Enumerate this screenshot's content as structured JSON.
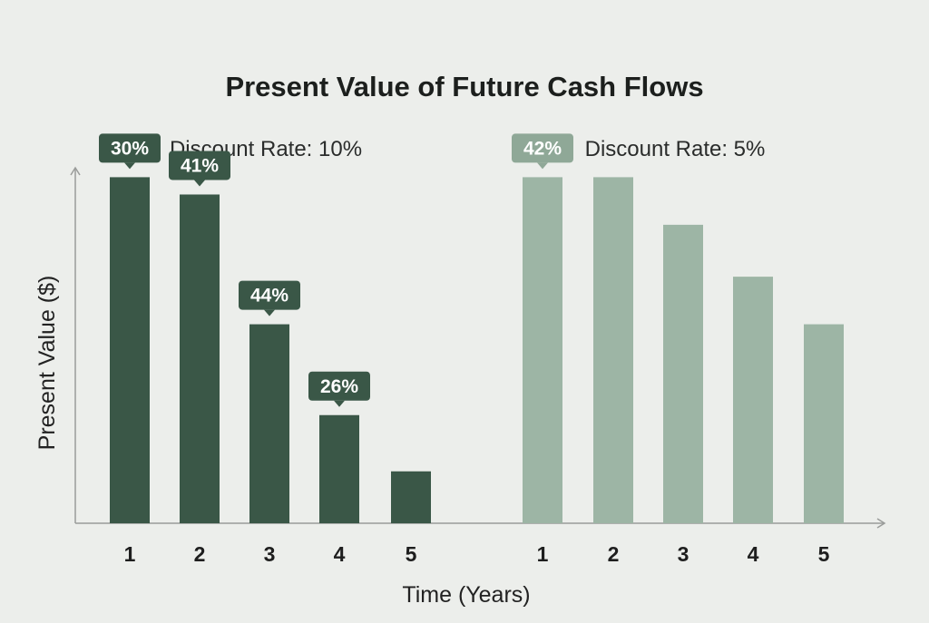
{
  "chart_data": {
    "type": "bar",
    "title": "Present Value of Future Cash Flows",
    "xlabel": "Time (Years)",
    "ylabel": "Present Value ($)",
    "grid": false,
    "ylim": [
      0,
      100
    ],
    "colors": {
      "dark": "#3a5747",
      "light": "#9db5a5",
      "axis": "#9a9c9a",
      "badge_dark": "#3a5747",
      "badge_light": "#8fa897"
    },
    "panels": [
      {
        "subtitle": "Discount Rate: 10%",
        "categories": [
          "1",
          "2",
          "3",
          "4",
          "5"
        ],
        "values": [
          80,
          76,
          46,
          25,
          12
        ],
        "data_labels": [
          "30%",
          "41%",
          "44%",
          "26%",
          ""
        ]
      },
      {
        "subtitle": "Discount Rate: 5%",
        "categories": [
          "1",
          "2",
          "3",
          "4",
          "5"
        ],
        "values": [
          80,
          80,
          69,
          57,
          46
        ],
        "data_labels": [
          "42%",
          "",
          "",
          "",
          ""
        ]
      }
    ]
  }
}
